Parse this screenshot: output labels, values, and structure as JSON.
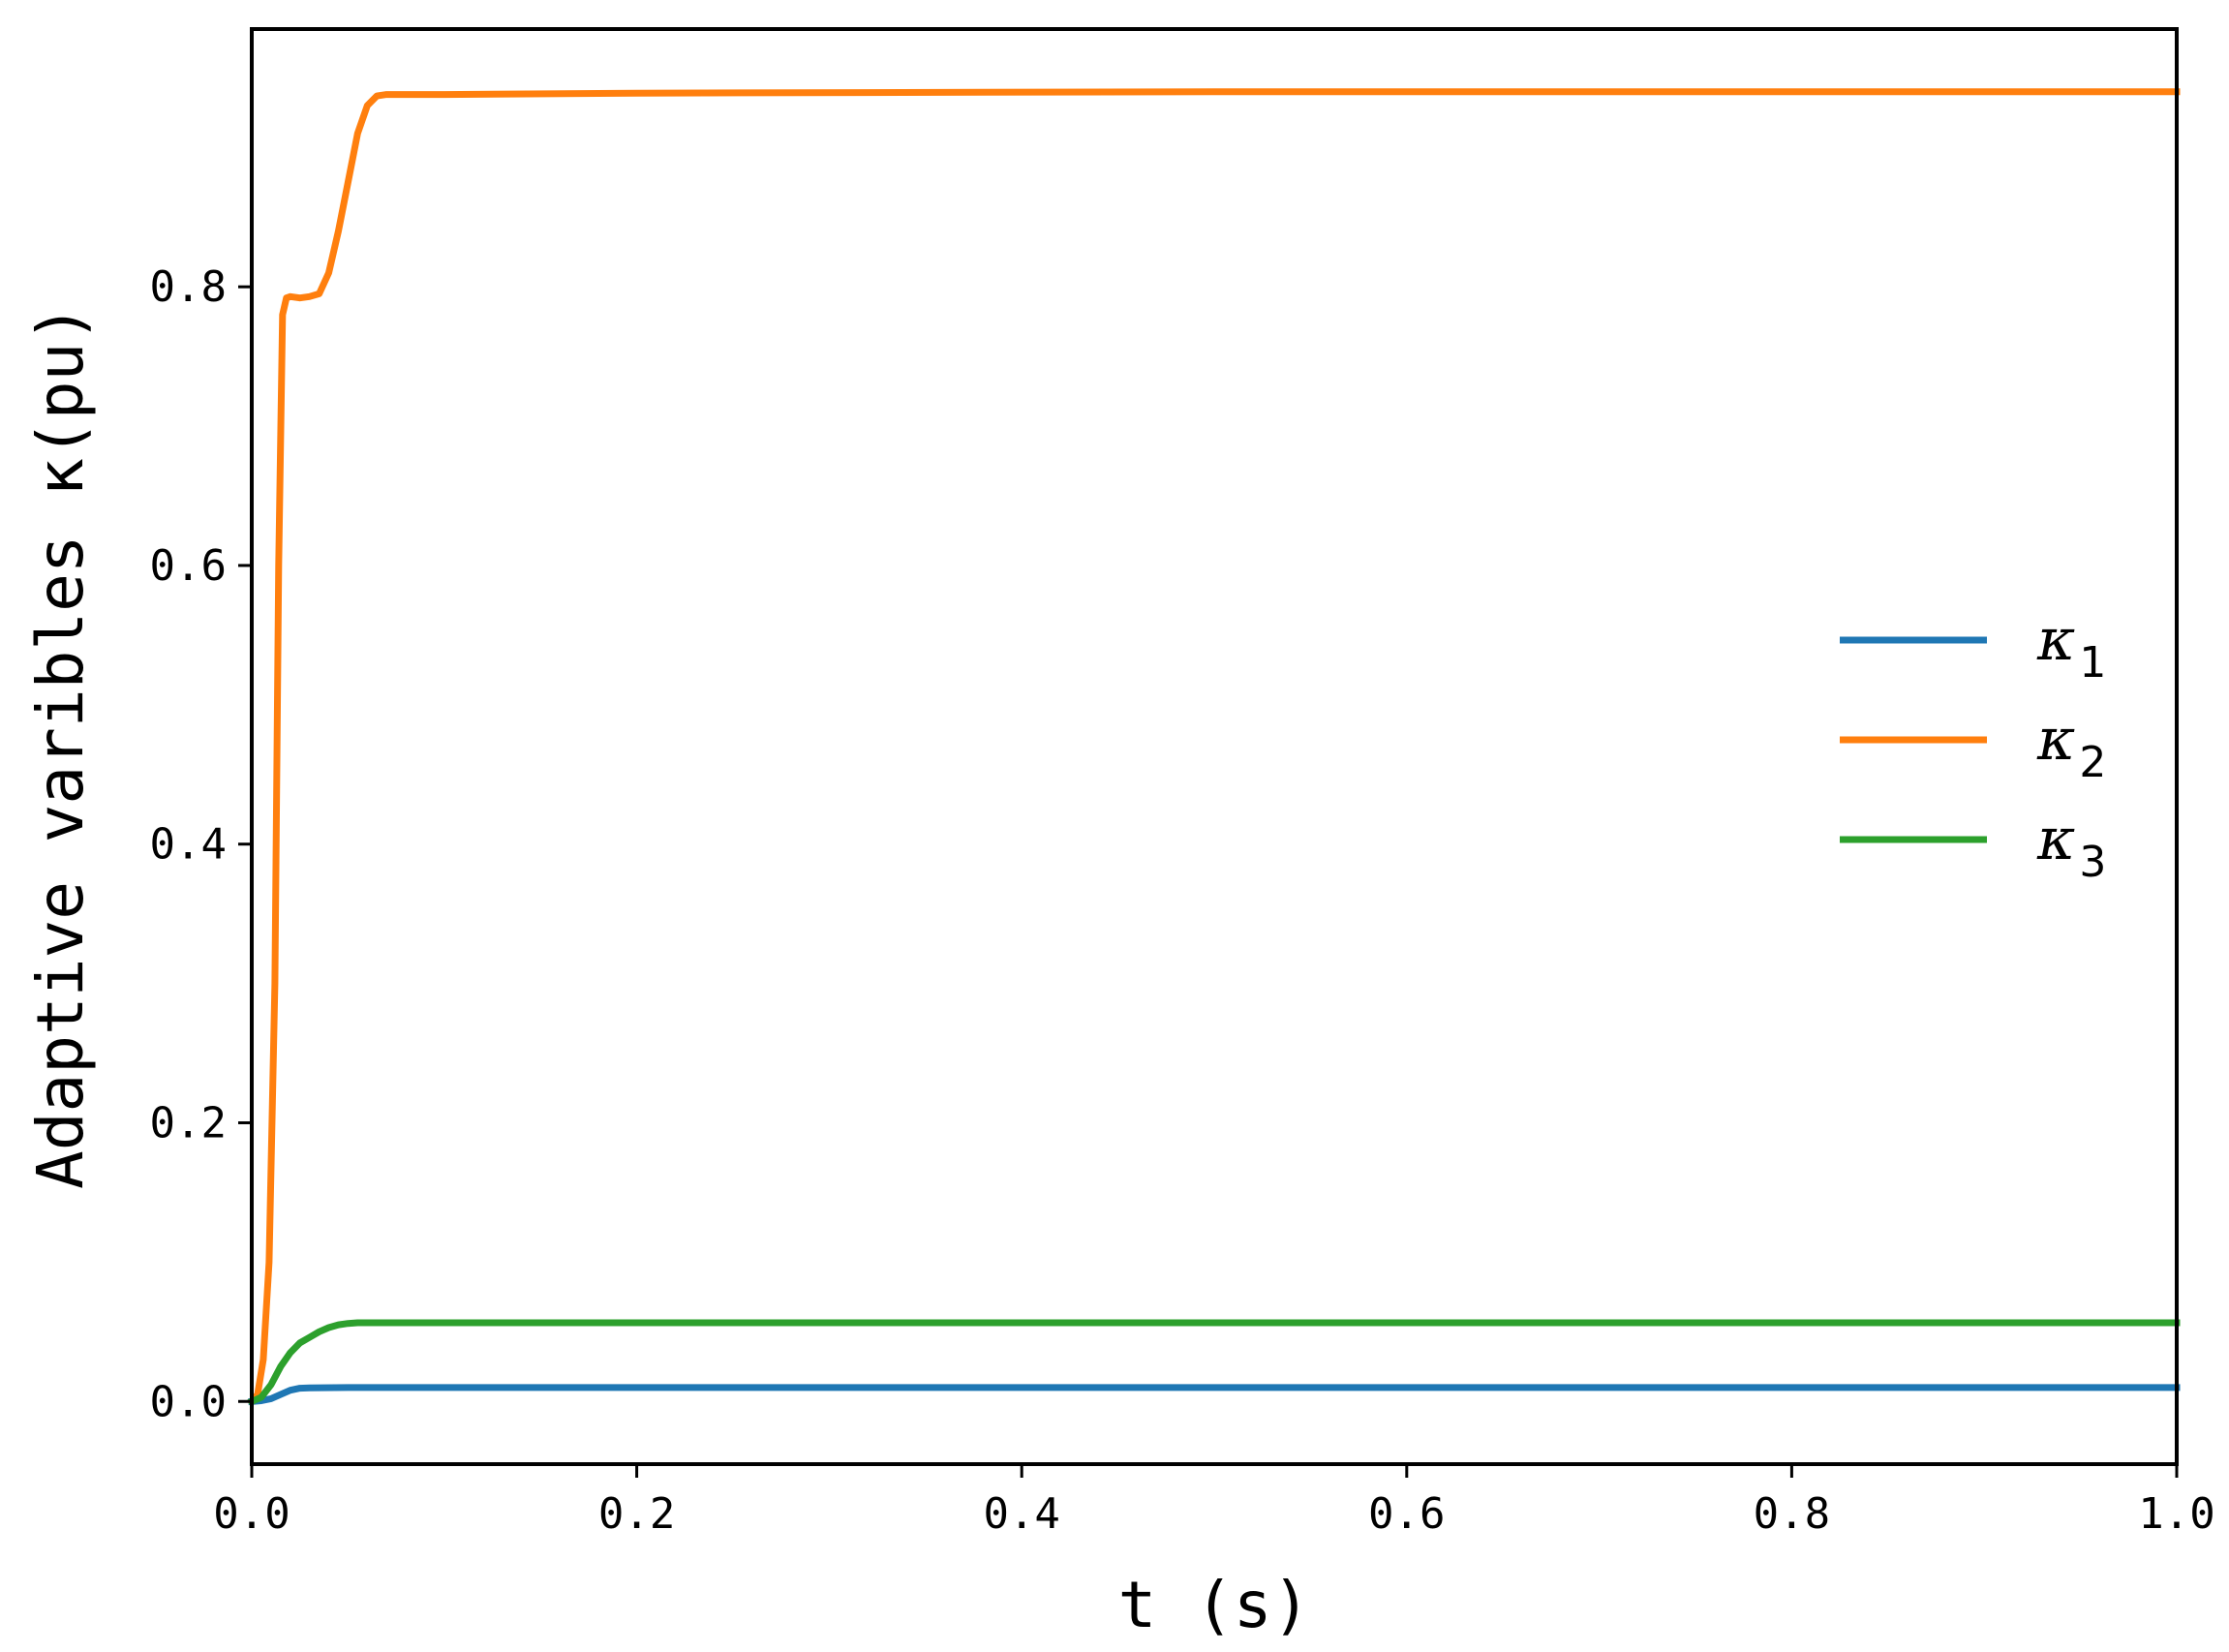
{
  "chart_data": {
    "type": "line",
    "title": "",
    "xlabel": "t (s)",
    "ylabel": "Adaptive varibles κ(pu)",
    "xlim": [
      0.0,
      1.0
    ],
    "ylim": [
      -0.045,
      0.985
    ],
    "xticks": [
      0.0,
      0.2,
      0.4,
      0.6,
      0.8,
      1.0
    ],
    "xtick_labels": [
      "0.0",
      "0.2",
      "0.4",
      "0.6",
      "0.8",
      "1.0"
    ],
    "yticks": [
      0.0,
      0.2,
      0.4,
      0.6,
      0.8
    ],
    "ytick_labels": [
      "0.0",
      "0.2",
      "0.4",
      "0.6",
      "0.8"
    ],
    "grid": false,
    "legend_position": "center-right",
    "series": [
      {
        "name": "κ1",
        "legend_main": "κ",
        "legend_sub": "1",
        "color": "#1f77b4",
        "x": [
          0.0,
          0.005,
          0.01,
          0.015,
          0.02,
          0.025,
          0.03,
          0.05,
          0.1,
          0.3,
          0.6,
          1.0
        ],
        "y": [
          0.0,
          0.0005,
          0.002,
          0.005,
          0.008,
          0.0095,
          0.0098,
          0.01,
          0.01,
          0.01,
          0.01,
          0.01
        ]
      },
      {
        "name": "κ2",
        "legend_main": "κ",
        "legend_sub": "2",
        "color": "#ff7f0e",
        "x": [
          0.0,
          0.003,
          0.006,
          0.009,
          0.012,
          0.014,
          0.016,
          0.018,
          0.02,
          0.025,
          0.03,
          0.035,
          0.04,
          0.045,
          0.05,
          0.055,
          0.06,
          0.065,
          0.07,
          0.075,
          0.1,
          0.2,
          0.5,
          1.0
        ],
        "y": [
          0.0,
          0.005,
          0.03,
          0.1,
          0.3,
          0.6,
          0.78,
          0.792,
          0.793,
          0.792,
          0.793,
          0.795,
          0.81,
          0.84,
          0.875,
          0.91,
          0.93,
          0.937,
          0.938,
          0.938,
          0.938,
          0.939,
          0.94,
          0.94
        ]
      },
      {
        "name": "κ3",
        "legend_main": "κ",
        "legend_sub": "3",
        "color": "#2ca02c",
        "x": [
          0.0,
          0.005,
          0.01,
          0.015,
          0.02,
          0.025,
          0.03,
          0.035,
          0.04,
          0.045,
          0.05,
          0.055,
          0.1,
          0.3,
          0.6,
          1.0
        ],
        "y": [
          0.0,
          0.003,
          0.012,
          0.025,
          0.035,
          0.042,
          0.046,
          0.05,
          0.053,
          0.055,
          0.056,
          0.0565,
          0.0565,
          0.0565,
          0.0565,
          0.0565
        ]
      }
    ]
  }
}
